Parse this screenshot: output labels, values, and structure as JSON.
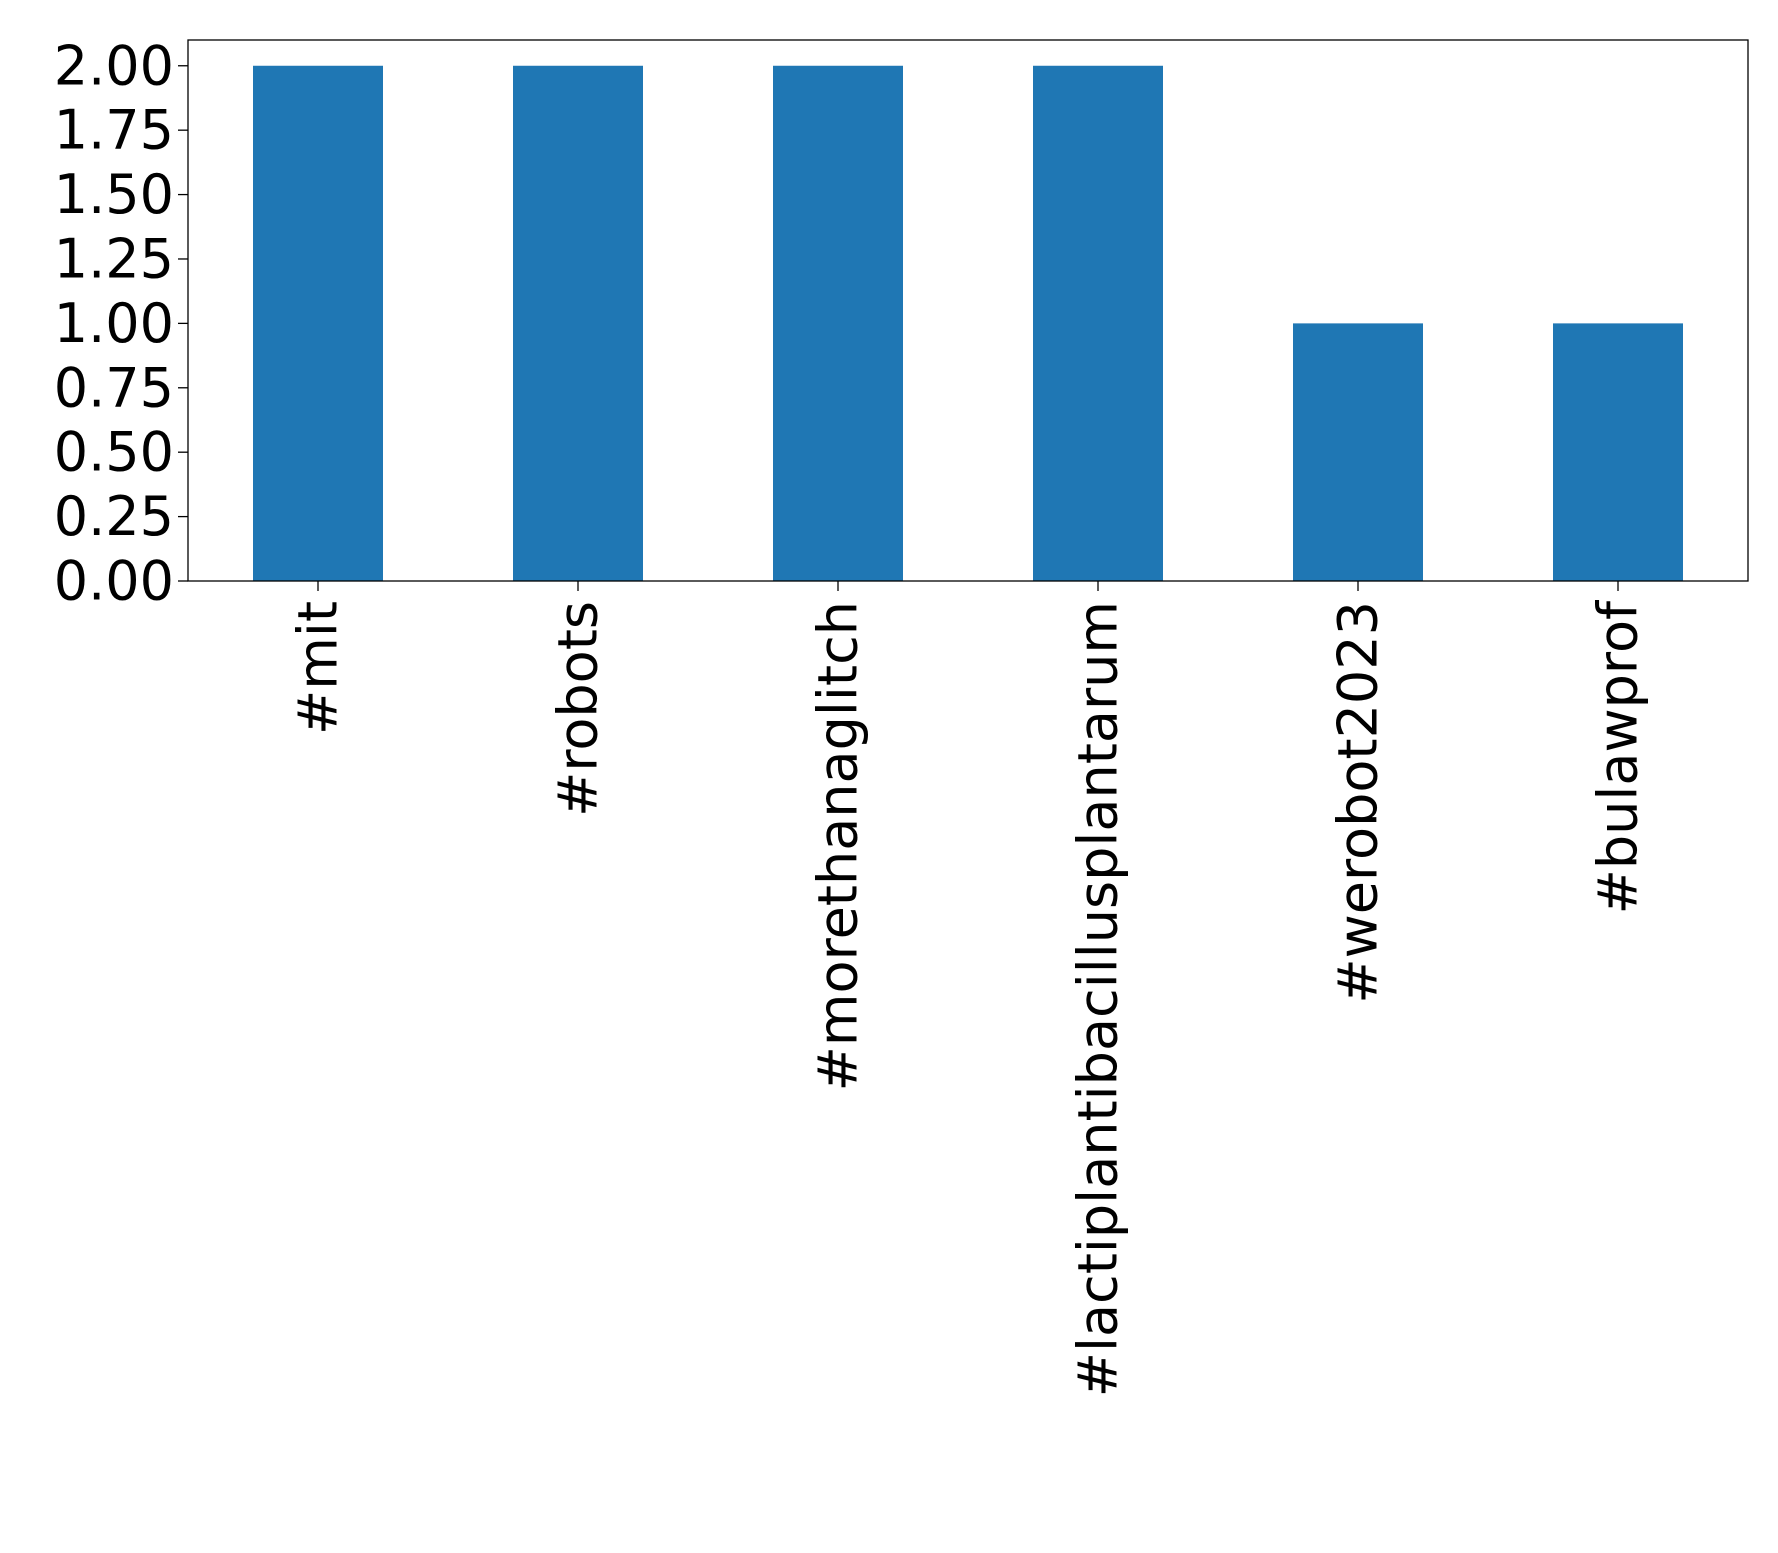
{
  "chart_data": {
    "type": "bar",
    "title": "",
    "xlabel": "",
    "ylabel": "",
    "categories": [
      "#mit",
      "#robots",
      "#morethanaglitch",
      "#lactiplantibacillusplantarum",
      "#werobot2023",
      "#bulawprof"
    ],
    "values": [
      2,
      2,
      2,
      2,
      1,
      1
    ],
    "ylim": [
      0,
      2.1
    ],
    "yticks": [
      "0.00",
      "0.25",
      "0.50",
      "0.75",
      "1.00",
      "1.25",
      "1.50",
      "1.75",
      "2.00"
    ],
    "bar_color": "#1f77b4",
    "grid": false,
    "legend": "none"
  }
}
